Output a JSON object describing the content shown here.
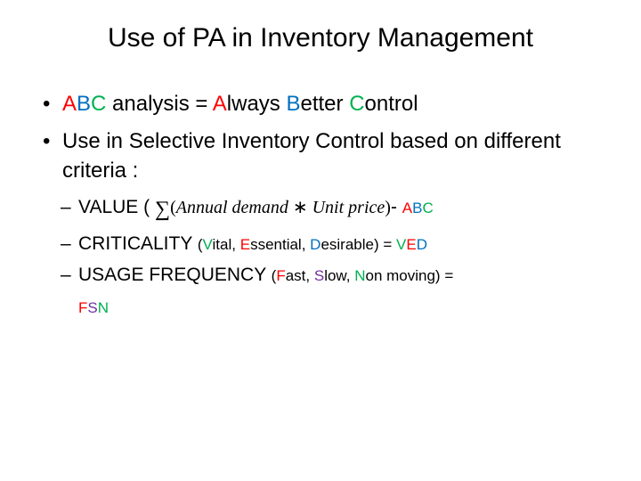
{
  "title": "Use of PA  in Inventory Management",
  "colors": {
    "red": "#ff0000",
    "blue": "#0070c0",
    "green": "#00b050",
    "purple": "#7030a0",
    "black": "#000000"
  },
  "main": {
    "b1": {
      "s1": "A",
      "s2": "B",
      "s3": "C",
      "s4": " analysis = ",
      "s5": "A",
      "s6": "lways ",
      "s7": "B",
      "s8": "etter ",
      "s9": "C",
      "s10": "ontrol"
    },
    "b2": "Use in Selective Inventory Control based on different criteria :",
    "sub": {
      "value": {
        "label": "VALUE ( ",
        "formula_open": "(",
        "formula_a": "Annual demand",
        "formula_mult": "  ∗ ",
        "formula_b": "Unit price",
        "formula_close": ")",
        "dash": "- ",
        "a": "A",
        "b": "B",
        "c": "C"
      },
      "crit": {
        "label": "CRITICALITY ",
        "open": "(",
        "v": "V",
        "v2": "ital, ",
        "e": "E",
        "e2": "ssential, ",
        "d": "D",
        "d2": "esirable) = ",
        "rv": "V",
        "re": "E",
        "rd": "D"
      },
      "usage": {
        "label": "USAGE FREQUENCY ",
        "open": "(",
        "f": "F",
        "f2": "ast, ",
        "s": "S",
        "s2": "low, ",
        "n": "N",
        "n2": "on moving) =",
        "rf": "F",
        "rs": "S",
        "rn": "N"
      }
    }
  }
}
